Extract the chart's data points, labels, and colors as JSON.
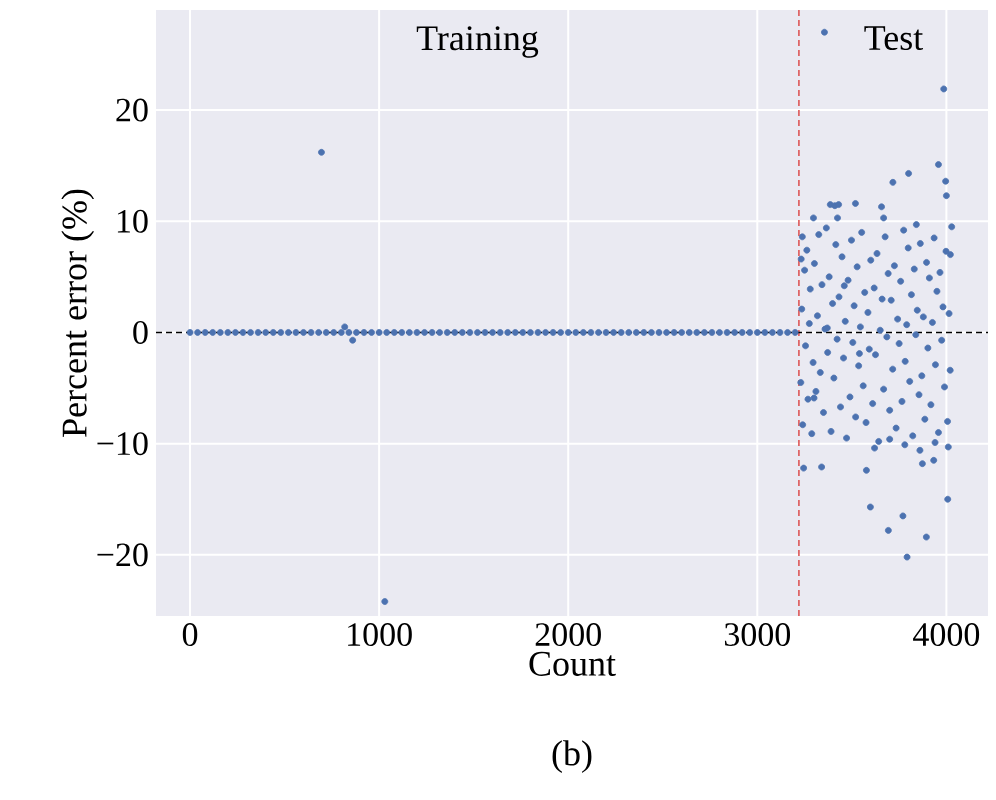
{
  "chart_data": {
    "type": "scatter",
    "xlabel": "Count",
    "ylabel": "Percent error (%)",
    "annotations": [
      "Training",
      "Test",
      "(b)"
    ],
    "color": "#4c72b0",
    "grid": true,
    "xlim": [
      -180,
      4220
    ],
    "ylim": [
      -25.5,
      29
    ],
    "xticks": [
      0,
      1000,
      2000,
      3000,
      4000
    ],
    "yticks": [
      {
        "value": -20,
        "label": "−20"
      },
      {
        "value": -10,
        "label": "−10"
      },
      0,
      10,
      20
    ],
    "ref_lines": [
      {
        "axis": "x",
        "value": 3220,
        "color": "#dd5555",
        "line_style": "dashed"
      },
      {
        "axis": "y",
        "value": 0,
        "color": "#000000",
        "line_style": "dashed"
      }
    ],
    "x": [
      0,
      40,
      80,
      120,
      160,
      200,
      240,
      280,
      320,
      360,
      400,
      440,
      480,
      520,
      560,
      600,
      640,
      680,
      695,
      720,
      760,
      800,
      818,
      840,
      860,
      880,
      920,
      960,
      1000,
      1030,
      1040,
      1080,
      1120,
      1160,
      1200,
      1240,
      1280,
      1320,
      1360,
      1400,
      1440,
      1480,
      1520,
      1560,
      1600,
      1640,
      1680,
      1720,
      1760,
      1800,
      1840,
      1880,
      1920,
      1960,
      2000,
      2040,
      2080,
      2120,
      2160,
      2200,
      2240,
      2280,
      2320,
      2360,
      2400,
      2440,
      2480,
      2520,
      2560,
      2600,
      2640,
      2680,
      2720,
      2760,
      2800,
      2840,
      2880,
      2920,
      2960,
      3000,
      3040,
      3080,
      3120,
      3160,
      3200,
      3355,
      3986,
      3800,
      3717,
      3958,
      3996,
      4000,
      4028,
      4021,
      3245,
      3340,
      3577,
      3873,
      3933,
      4007,
      3598,
      3770,
      3693,
      3894,
      3792,
      3386,
      3410,
      3430,
      3519,
      3657,
      3297,
      3424,
      3668,
      3841,
      3238,
      3230,
      3235,
      3240,
      3250,
      3255,
      3262,
      3268,
      3275,
      3280,
      3288,
      3295,
      3302,
      3310,
      3318,
      3325,
      3333,
      3342,
      3350,
      3358,
      3365,
      3372,
      3380,
      3390,
      3398,
      3405,
      3415,
      3422,
      3432,
      3440,
      3448,
      3456,
      3465,
      3472,
      3480,
      3490,
      3498,
      3505,
      3512,
      3520,
      3528,
      3536,
      3545,
      3552,
      3560,
      3568,
      3575,
      3585,
      3592,
      3600,
      3610,
      3618,
      3625,
      3633,
      3642,
      3650,
      3660,
      3668,
      3676,
      3685,
      3692,
      3700,
      3708,
      3716,
      3725,
      3734,
      3742,
      3750,
      3758,
      3765,
      3774,
      3782,
      3790,
      3798,
      3806,
      3815,
      3822,
      3830,
      3838,
      3846,
      3855,
      3862,
      3870,
      3878,
      3886,
      3895,
      3902,
      3910,
      3918,
      3926,
      3935,
      3942,
      3950,
      3958,
      3966,
      3975,
      3982,
      3990,
      3998,
      4006,
      4014,
      4020,
      3232,
      3300,
      3370,
      3460,
      3540,
      3620,
      3700,
      3780,
      3860,
      3940,
      4010
    ],
    "values": [
      0,
      0,
      0,
      0,
      0,
      0,
      0,
      0,
      0,
      0,
      0,
      0,
      0,
      0,
      0,
      0,
      0,
      0,
      16.2,
      0,
      0,
      0,
      0.5,
      0,
      -0.7,
      0,
      0,
      0,
      0,
      -24.2,
      0,
      0,
      0,
      0,
      0,
      0,
      0,
      0,
      0,
      0,
      0,
      0,
      0,
      0,
      0,
      0,
      0,
      0,
      0,
      0,
      0,
      0,
      0,
      0,
      0,
      0,
      0,
      0,
      0,
      0,
      0,
      0,
      0,
      0,
      0,
      0,
      0,
      0,
      0,
      0,
      0,
      0,
      0,
      0,
      0,
      0,
      0,
      0,
      0,
      0,
      0,
      0,
      0,
      0,
      0,
      27.0,
      21.9,
      14.3,
      13.5,
      15.1,
      13.6,
      12.3,
      9.5,
      7.0,
      -12.2,
      -12.1,
      -12.4,
      -11.8,
      -11.5,
      -15.0,
      -15.7,
      -16.5,
      -17.8,
      -18.4,
      -20.2,
      11.5,
      11.4,
      11.5,
      11.6,
      11.3,
      10.3,
      10.3,
      10.3,
      9.7,
      8.6,
      -4.5,
      2.1,
      -8.3,
      5.6,
      -1.2,
      7.4,
      -6.0,
      0.8,
      3.9,
      -9.1,
      -2.7,
      6.2,
      -5.3,
      1.5,
      8.8,
      -3.6,
      4.3,
      -7.2,
      0.3,
      9.4,
      -1.8,
      5.0,
      -8.9,
      2.6,
      -4.1,
      7.9,
      -0.6,
      3.2,
      -6.7,
      6.8,
      -2.3,
      1.0,
      -9.5,
      4.7,
      -5.8,
      8.3,
      -0.9,
      2.4,
      -7.6,
      5.9,
      -3.0,
      0.5,
      9.0,
      -4.8,
      3.6,
      -8.1,
      1.8,
      -1.5,
      6.5,
      -6.4,
      4.0,
      -2.0,
      7.1,
      -9.8,
      0.2,
      3.0,
      -5.1,
      8.6,
      -0.4,
      5.3,
      -7.0,
      2.9,
      -3.3,
      6.0,
      -8.6,
      1.2,
      -1.0,
      4.6,
      -6.2,
      9.2,
      -2.6,
      0.7,
      7.6,
      -4.4,
      3.4,
      -9.3,
      5.7,
      -0.2,
      2.0,
      -5.6,
      8.0,
      -3.9,
      1.4,
      -7.8,
      6.3,
      -1.4,
      4.9,
      -6.5,
      0.9,
      8.5,
      -2.9,
      3.7,
      -9.0,
      5.4,
      -0.7,
      2.3,
      -4.9,
      7.3,
      -8.0,
      1.7,
      -3.4,
      6.6,
      -5.9,
      0.4,
      4.2,
      -1.9,
      -10.4,
      -9.6,
      -10.1,
      -10.6,
      -9.9,
      -10.3
    ]
  }
}
